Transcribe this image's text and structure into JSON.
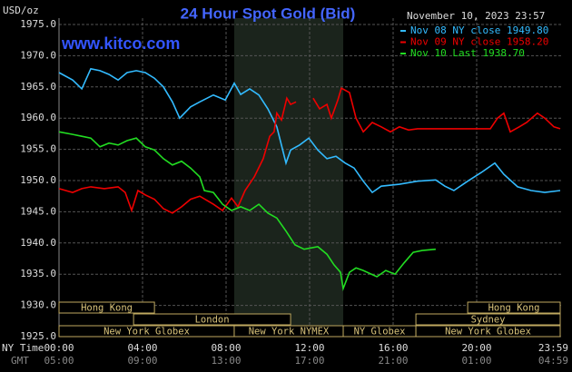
{
  "chart_data": {
    "type": "line",
    "title": "24 Hour Spot Gold (Bid)",
    "unit_label": "USD/oz",
    "timestamp": "November 10, 2023 23:57",
    "site": "www.kitco.com",
    "x_row_labels": [
      "NY Time",
      "GMT"
    ],
    "xlim": [
      0,
      24
    ],
    "xticks": [
      {
        "value": 0,
        "label": "00:00"
      },
      {
        "value": 4,
        "label": "04:00"
      },
      {
        "value": 8,
        "label": "08:00"
      },
      {
        "value": 12,
        "label": "12:00"
      },
      {
        "value": 16,
        "label": "16:00"
      },
      {
        "value": 20,
        "label": "20:00"
      },
      {
        "value": 23.98,
        "label": "23:59"
      }
    ],
    "xticks_gmt": [
      "05:00",
      "09:00",
      "13:00",
      "17:00",
      "21:00",
      "01:00",
      "04:59"
    ],
    "ylim": [
      1925,
      1975
    ],
    "yticks": [
      {
        "value": 1975,
        "label": "1975.0"
      },
      {
        "value": 1970,
        "label": "1970.0"
      },
      {
        "value": 1965,
        "label": "1965.0"
      },
      {
        "value": 1960,
        "label": "1960.0"
      },
      {
        "value": 1955,
        "label": "1955.0"
      },
      {
        "value": 1950,
        "label": "1950.0"
      },
      {
        "value": 1945,
        "label": "1945.0"
      },
      {
        "value": 1940,
        "label": "1940.0"
      },
      {
        "value": 1935,
        "label": "1935.0"
      },
      {
        "value": 1930,
        "label": "1930.0"
      },
      {
        "value": 1925,
        "label": "1925.0"
      }
    ],
    "grid": true,
    "series": [
      {
        "name": "Nov 08 NY close 1949.80",
        "color": "#33bbff",
        "x": [
          0,
          0.65,
          1.09,
          1.52,
          1.96,
          2.39,
          2.83,
          3.26,
          3.7,
          4.13,
          4.57,
          5.0,
          5.43,
          5.78,
          6.3,
          6.74,
          7.39,
          7.96,
          8.39,
          8.7,
          9.13,
          9.57,
          10.0,
          10.43,
          10.87,
          11.09,
          11.52,
          11.96,
          12.39,
          12.83,
          13.26,
          13.7,
          14.13,
          14.57,
          15.0,
          15.43,
          16.3,
          17.17,
          18.04,
          18.48,
          18.91,
          19.57,
          20.22,
          20.87,
          21.3,
          21.96,
          22.61,
          23.26,
          24.0
        ],
        "values": [
          1967.3,
          1966.1,
          1964.7,
          1967.9,
          1967.6,
          1967.0,
          1966.1,
          1967.3,
          1967.6,
          1967.3,
          1966.4,
          1965.0,
          1962.6,
          1960.0,
          1961.8,
          1962.6,
          1963.7,
          1962.9,
          1965.6,
          1963.8,
          1964.7,
          1963.7,
          1961.5,
          1958.6,
          1952.8,
          1954.9,
          1955.7,
          1956.8,
          1954.9,
          1953.5,
          1953.9,
          1952.8,
          1952.0,
          1949.9,
          1948.1,
          1949.1,
          1949.4,
          1949.9,
          1950.1,
          1949.1,
          1948.4,
          1949.9,
          1951.3,
          1952.8,
          1951.0,
          1949.0,
          1948.4,
          1948.1,
          1948.4
        ]
      },
      {
        "name": "Nov 09 NY close 1958.20",
        "color": "#ee0000",
        "x": [
          0,
          0.65,
          1.09,
          1.52,
          2.17,
          2.83,
          3.17,
          3.48,
          3.78,
          4.13,
          4.57,
          5.0,
          5.43,
          5.87,
          6.3,
          6.74,
          7.39,
          7.83,
          8.26,
          8.57,
          8.91,
          9.35,
          9.78,
          10.09,
          10.3,
          10.43,
          10.65,
          10.91,
          11.09,
          11.35,
          11.8,
          12.17,
          12.48,
          12.83,
          13.04,
          13.35,
          13.52,
          13.91,
          14.22,
          14.57,
          15.0,
          15.43,
          15.87,
          16.3,
          16.74,
          17.17,
          20.65,
          21.0,
          21.3,
          21.61,
          22.04,
          22.39,
          22.91,
          23.26,
          23.7,
          24.0
        ],
        "values": [
          1948.7,
          1948.1,
          1948.7,
          1949.0,
          1948.7,
          1949.0,
          1948.1,
          1945.2,
          1948.4,
          1947.7,
          1947.0,
          1945.5,
          1944.8,
          1945.8,
          1947.0,
          1947.5,
          1946.2,
          1945.2,
          1947.2,
          1945.8,
          1948.4,
          1950.6,
          1953.5,
          1957.1,
          1957.8,
          1960.8,
          1959.7,
          1963.2,
          1962.2,
          1962.6,
          null,
          1963.2,
          1961.5,
          1962.2,
          1960.0,
          1962.9,
          1964.8,
          1964.1,
          1960.0,
          1957.8,
          1959.3,
          1958.6,
          1957.8,
          1958.6,
          1958.1,
          1958.3,
          1958.3,
          1960.0,
          1960.8,
          1957.8,
          1958.6,
          1959.3,
          1960.8,
          1960.0,
          1958.6,
          1958.3
        ]
      },
      {
        "name": "Nov 10 Last 1938.70",
        "color": "#22dd22",
        "x": [
          0,
          0.65,
          1.09,
          1.52,
          1.96,
          2.39,
          2.83,
          3.26,
          3.7,
          4.13,
          4.57,
          5.0,
          5.43,
          5.87,
          6.3,
          6.74,
          6.96,
          7.39,
          7.83,
          8.26,
          8.7,
          9.13,
          9.57,
          10.0,
          10.43,
          10.87,
          11.3,
          11.74,
          12.39,
          12.83,
          13.17,
          13.48,
          13.61,
          13.91,
          14.22,
          14.57,
          15.22,
          15.65,
          16.09,
          16.52,
          16.96,
          17.39,
          18.04
        ],
        "values": [
          1957.8,
          1957.4,
          1957.1,
          1956.8,
          1955.4,
          1956.0,
          1955.7,
          1956.4,
          1956.8,
          1955.4,
          1954.9,
          1953.5,
          1952.5,
          1953.1,
          1952.0,
          1950.6,
          1948.4,
          1948.1,
          1946.2,
          1945.2,
          1945.8,
          1945.2,
          1946.2,
          1944.8,
          1944.0,
          1941.9,
          1939.7,
          1939.0,
          1939.4,
          1938.2,
          1936.5,
          1935.3,
          1932.7,
          1935.3,
          1936.0,
          1935.6,
          1934.6,
          1935.6,
          1935.0,
          1936.8,
          1938.5,
          1938.8,
          1939.0
        ]
      }
    ],
    "sessions": [
      [
        {
          "label": "Hong Kong",
          "start": 0,
          "end": 4.57
        },
        {
          "label": "Hong Kong",
          "start": 19.57,
          "end": 24
        }
      ],
      [
        {
          "label": "London",
          "start": 3.57,
          "end": 11.09
        },
        {
          "label": "Sydney",
          "start": 17.09,
          "end": 24
        }
      ],
      [
        {
          "label": "New York Globex",
          "start": 0,
          "end": 8.39
        },
        {
          "label": "New York NYMEX",
          "start": 8.39,
          "end": 13.61
        },
        {
          "label": "NY Globex",
          "start": 13.61,
          "end": 17.09
        },
        {
          "label": "New York Globex",
          "start": 17.09,
          "end": 24
        }
      ]
    ]
  }
}
